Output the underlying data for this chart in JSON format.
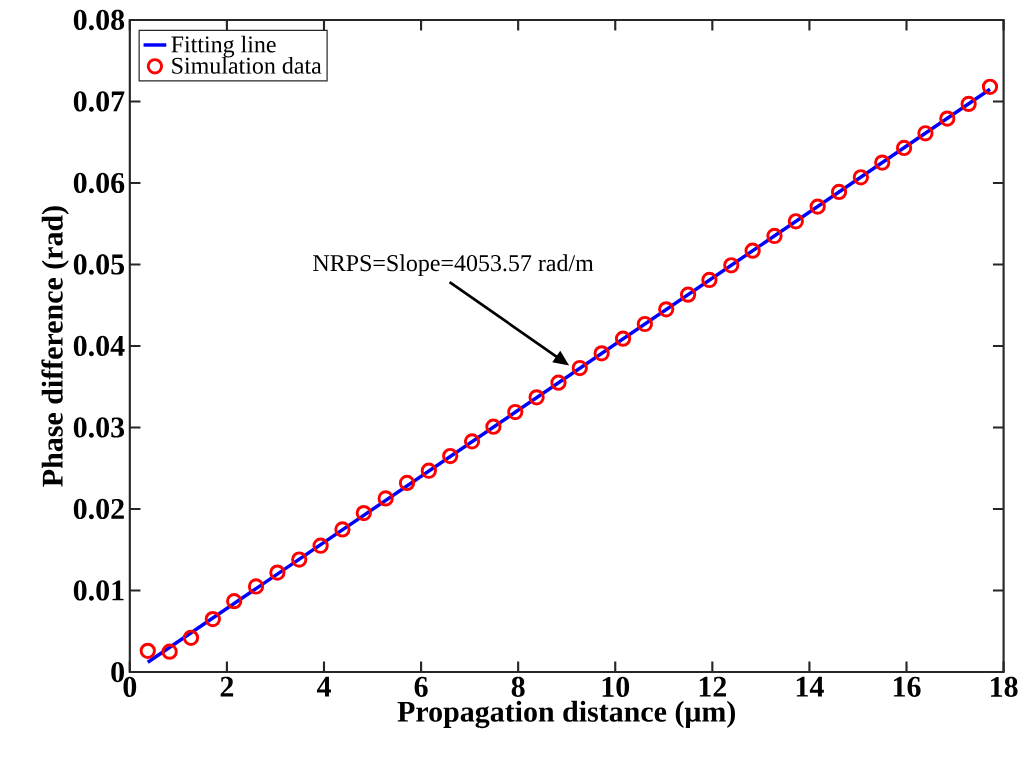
{
  "chart_data": {
    "type": "scatter",
    "xlabel": "Propagation distance (μm)",
    "ylabel": "Phase difference (rad)",
    "xlim": [
      0,
      18
    ],
    "ylim": [
      0,
      0.08
    ],
    "xticks": [
      0,
      2,
      4,
      6,
      8,
      10,
      12,
      14,
      16,
      18
    ],
    "yticks": [
      0,
      0.01,
      0.02,
      0.03,
      0.04,
      0.05,
      0.06,
      0.07,
      0.08
    ],
    "legend": "top left",
    "grid": false,
    "annotations": [
      "NRPS=Slope=4053.57 rad/m"
    ],
    "series": [
      {
        "name": "Fitting line",
        "type": "line",
        "color": "#0000ff",
        "marker": "none",
        "line_style": "solid",
        "x": [
          0.37,
          17.72
        ],
        "values": [
          0.0012,
          0.0715
        ]
      },
      {
        "name": "Simulation data",
        "color": "#ff0000",
        "marker": "circle",
        "x": [
          0.37,
          0.82,
          1.26,
          1.71,
          2.15,
          2.6,
          3.04,
          3.49,
          3.93,
          4.38,
          4.82,
          5.27,
          5.71,
          6.16,
          6.6,
          7.05,
          7.49,
          7.94,
          8.38,
          8.83,
          9.27,
          9.72,
          10.16,
          10.61,
          11.05,
          11.5,
          11.94,
          12.39,
          12.83,
          13.28,
          13.72,
          14.17,
          14.61,
          15.06,
          15.5,
          15.95,
          16.39,
          16.84,
          17.28,
          17.72
        ],
        "values": [
          0.0026,
          0.0025,
          0.0042,
          0.0065,
          0.0087,
          0.0105,
          0.0122,
          0.0138,
          0.0155,
          0.0175,
          0.0195,
          0.0213,
          0.0232,
          0.0247,
          0.0265,
          0.0283,
          0.0301,
          0.0319,
          0.0337,
          0.0355,
          0.0373,
          0.0391,
          0.0409,
          0.0427,
          0.0445,
          0.0463,
          0.0481,
          0.0499,
          0.0517,
          0.0535,
          0.0553,
          0.0571,
          0.0589,
          0.0607,
          0.0625,
          0.0643,
          0.0661,
          0.0679,
          0.0697,
          0.0718
        ]
      }
    ]
  }
}
